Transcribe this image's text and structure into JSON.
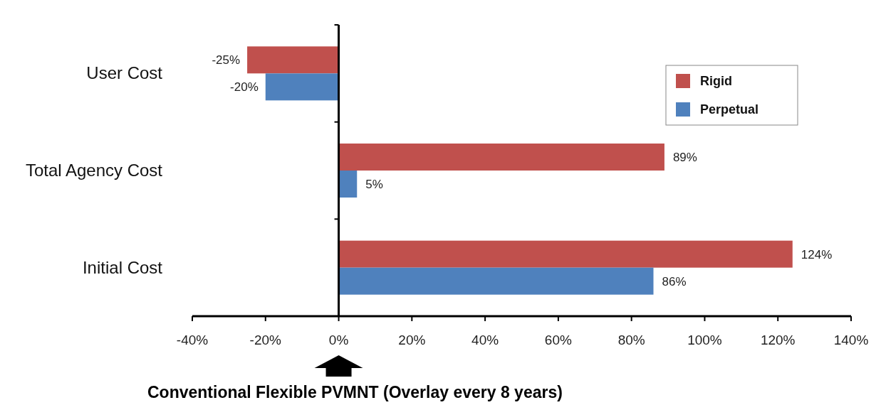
{
  "chart_data": {
    "type": "bar",
    "orientation": "horizontal",
    "categories": [
      "User Cost",
      "Total Agency Cost",
      "Initial Cost"
    ],
    "series": [
      {
        "name": "Rigid",
        "color": "#c0504d",
        "values": [
          -25,
          89,
          124
        ],
        "value_labels": [
          "-25%",
          "89%",
          "124%"
        ]
      },
      {
        "name": "Perpetual",
        "color": "#4f81bd",
        "values": [
          -20,
          5,
          86
        ],
        "value_labels": [
          "-20%",
          "5%",
          "86%"
        ]
      }
    ],
    "xlim": [
      -40,
      140
    ],
    "xticks": [
      {
        "value": -40,
        "label": "-40%"
      },
      {
        "value": -20,
        "label": "-20%"
      },
      {
        "value": 0,
        "label": "0%"
      },
      {
        "value": 20,
        "label": "20%"
      },
      {
        "value": 40,
        "label": "40%"
      },
      {
        "value": 60,
        "label": "60%"
      },
      {
        "value": 80,
        "label": "80%"
      },
      {
        "value": 100,
        "label": "100%"
      },
      {
        "value": 120,
        "label": "120%"
      },
      {
        "value": 140,
        "label": "140%"
      }
    ],
    "legend": "top right",
    "annotations": [
      "Conventional Flexible PVMNT (Overlay every 8 years)"
    ]
  }
}
